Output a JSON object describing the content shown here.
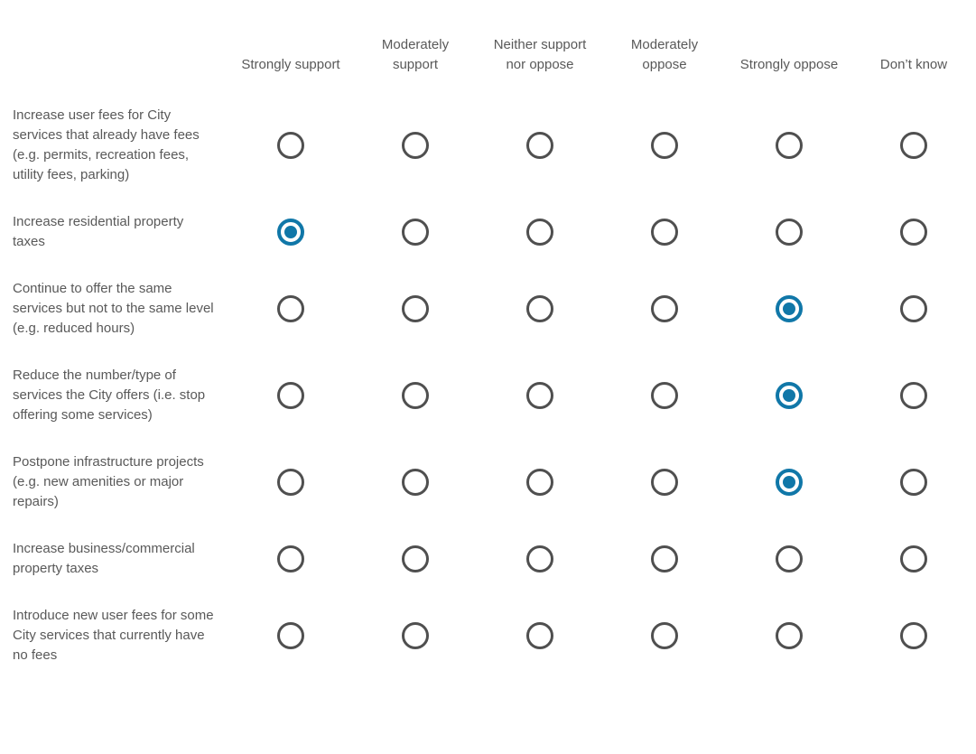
{
  "matrix": {
    "columns": [
      "Strongly support",
      "Moderately support",
      "Neither support nor oppose",
      "Moderately oppose",
      "Strongly oppose",
      "Don’t know"
    ],
    "rows": [
      {
        "label": "Increase user fees for City services that already have fees (e.g. permits, recreation fees, utility fees, parking)",
        "selected": null
      },
      {
        "label": "Increase residential property taxes",
        "selected": 0
      },
      {
        "label": "Continue to offer the same services but not to the same level (e.g. reduced hours)",
        "selected": 4
      },
      {
        "label": "Reduce the number/type of services the City offers (i.e. stop offering some services)",
        "selected": 4
      },
      {
        "label": "Postpone infrastructure projects (e.g. new amenities or major repairs)",
        "selected": 4
      },
      {
        "label": "Increase business/commercial property taxes",
        "selected": null
      },
      {
        "label": "Introduce new user fees for some City services that currently have no fees",
        "selected": null
      }
    ],
    "colors": {
      "accent": "#1077A8",
      "radio_ring": "#4F4F4F",
      "text": "#595959"
    }
  }
}
